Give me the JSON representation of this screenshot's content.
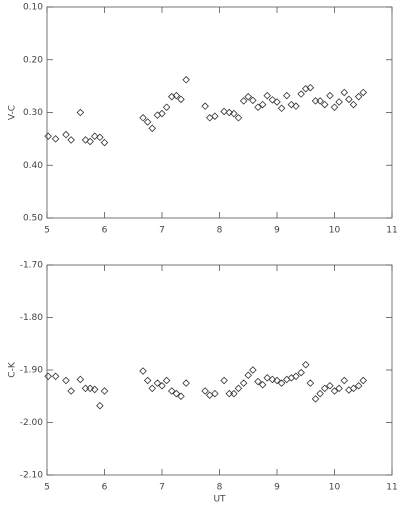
{
  "chart_data": [
    {
      "type": "scatter",
      "ylabel": "V-C",
      "color": "#333333",
      "x": [
        5.02,
        5.15,
        5.33,
        5.42,
        5.58,
        5.67,
        5.75,
        5.83,
        5.92,
        6.0,
        6.67,
        6.75,
        6.83,
        6.92,
        7.0,
        7.08,
        7.17,
        7.25,
        7.33,
        7.42,
        7.75,
        7.83,
        7.92,
        8.08,
        8.17,
        8.25,
        8.33,
        8.42,
        8.5,
        8.58,
        8.67,
        8.75,
        8.83,
        8.92,
        9.0,
        9.08,
        9.17,
        9.25,
        9.33,
        9.42,
        9.5,
        9.58,
        9.67,
        9.75,
        9.83,
        9.92,
        10.0,
        10.08,
        10.17,
        10.25,
        10.33,
        10.42,
        10.5
      ],
      "values": [
        0.345,
        0.35,
        0.342,
        0.352,
        0.3,
        0.352,
        0.355,
        0.345,
        0.347,
        0.357,
        0.31,
        0.318,
        0.33,
        0.305,
        0.302,
        0.29,
        0.27,
        0.268,
        0.275,
        0.238,
        0.288,
        0.31,
        0.307,
        0.298,
        0.3,
        0.302,
        0.31,
        0.278,
        0.27,
        0.277,
        0.29,
        0.285,
        0.268,
        0.276,
        0.28,
        0.292,
        0.268,
        0.285,
        0.288,
        0.265,
        0.255,
        0.253,
        0.278,
        0.278,
        0.285,
        0.268,
        0.29,
        0.28,
        0.262,
        0.275,
        0.285,
        0.27,
        0.262
      ],
      "xlim": [
        5,
        11
      ],
      "xticks": [
        5,
        6,
        7,
        8,
        9,
        10,
        11
      ],
      "ylim": [
        0.5,
        0.1
      ],
      "yticks": [
        {
          "value": 0.1,
          "label": "0.10"
        },
        {
          "value": 0.2,
          "label": "0.20"
        },
        {
          "value": 0.3,
          "label": "0.30"
        },
        {
          "value": 0.4,
          "label": "0.40"
        },
        {
          "value": 0.5,
          "label": "0.50"
        }
      ]
    },
    {
      "type": "scatter",
      "ylabel": "C-K",
      "xlabel": "UT",
      "color": "#333333",
      "x": [
        5.02,
        5.15,
        5.33,
        5.42,
        5.58,
        5.67,
        5.75,
        5.83,
        5.92,
        6.0,
        6.67,
        6.75,
        6.83,
        6.92,
        7.0,
        7.08,
        7.17,
        7.25,
        7.33,
        7.42,
        7.75,
        7.83,
        7.92,
        8.08,
        8.17,
        8.25,
        8.33,
        8.42,
        8.5,
        8.58,
        8.67,
        8.75,
        8.83,
        8.92,
        9.0,
        9.08,
        9.17,
        9.25,
        9.33,
        9.42,
        9.5,
        9.58,
        9.67,
        9.75,
        9.83,
        9.92,
        10.0,
        10.08,
        10.17,
        10.25,
        10.33,
        10.42,
        10.5
      ],
      "values": [
        -1.912,
        -1.912,
        -1.92,
        -1.94,
        -1.918,
        -1.935,
        -1.935,
        -1.937,
        -1.968,
        -1.94,
        -1.902,
        -1.92,
        -1.935,
        -1.925,
        -1.93,
        -1.92,
        -1.94,
        -1.945,
        -1.95,
        -1.925,
        -1.94,
        -1.948,
        -1.945,
        -1.92,
        -1.945,
        -1.945,
        -1.935,
        -1.925,
        -1.91,
        -1.9,
        -1.922,
        -1.928,
        -1.915,
        -1.918,
        -1.92,
        -1.925,
        -1.918,
        -1.915,
        -1.912,
        -1.905,
        -1.89,
        -1.925,
        -1.955,
        -1.945,
        -1.935,
        -1.93,
        -1.94,
        -1.935,
        -1.92,
        -1.938,
        -1.935,
        -1.93,
        -1.92
      ],
      "xlim": [
        5,
        11
      ],
      "xticks": [
        5,
        6,
        7,
        8,
        9,
        10,
        11
      ],
      "ylim": [
        -2.1,
        -1.7
      ],
      "yticks": [
        {
          "value": -2.1,
          "label": "-2.10"
        },
        {
          "value": -2.0,
          "label": "-2.00"
        },
        {
          "value": -1.9,
          "label": "-1.90"
        },
        {
          "value": -1.8,
          "label": "-1.80"
        },
        {
          "value": -1.7,
          "label": "-1.70"
        }
      ]
    }
  ]
}
